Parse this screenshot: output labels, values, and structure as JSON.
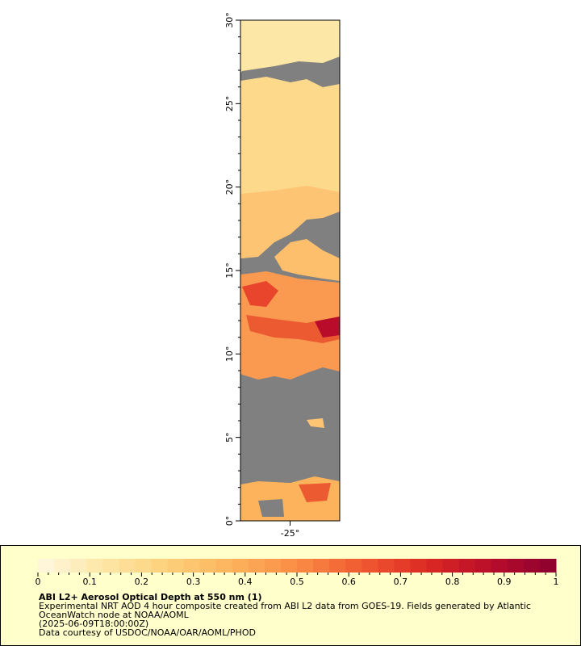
{
  "map": {
    "xlim": [
      -28,
      -22
    ],
    "ylim": [
      0,
      30
    ],
    "xticks": [
      {
        "value": -25,
        "label": "-25°"
      }
    ],
    "yticks": [
      {
        "value": 0,
        "label": "0°"
      },
      {
        "value": 5,
        "label": "5°"
      },
      {
        "value": 10,
        "label": "10°"
      },
      {
        "value": 15,
        "label": "15°"
      },
      {
        "value": 20,
        "label": "20°"
      },
      {
        "value": 25,
        "label": "25°"
      },
      {
        "value": 30,
        "label": "30°"
      }
    ]
  },
  "colorbar": {
    "range": [
      0,
      1
    ],
    "ticks": [
      0,
      0.1,
      0.2,
      0.3,
      0.4,
      0.5,
      0.6,
      0.7,
      0.8,
      0.9,
      1
    ],
    "palette": [
      "#fff8e0",
      "#fee7a6",
      "#fdd07a",
      "#fcb35c",
      "#fa8c44",
      "#f05a30",
      "#dc2a24",
      "#b80c2a",
      "#8b0030"
    ]
  },
  "legend": {
    "title": "ABI L2+ Aerosol Optical Depth at 550 nm (1)",
    "lines": [
      "Experimental NRT AOD 4 hour composite created from ABI L2 data from GOES-19. Fields generated by Atlantic",
      "OceanWatch node at NOAA/AOML",
      "(2025-06-09T18:00:00Z)",
      "Data courtesy of USDOC/NOAA/OAR/AOML/PHOD"
    ]
  }
}
